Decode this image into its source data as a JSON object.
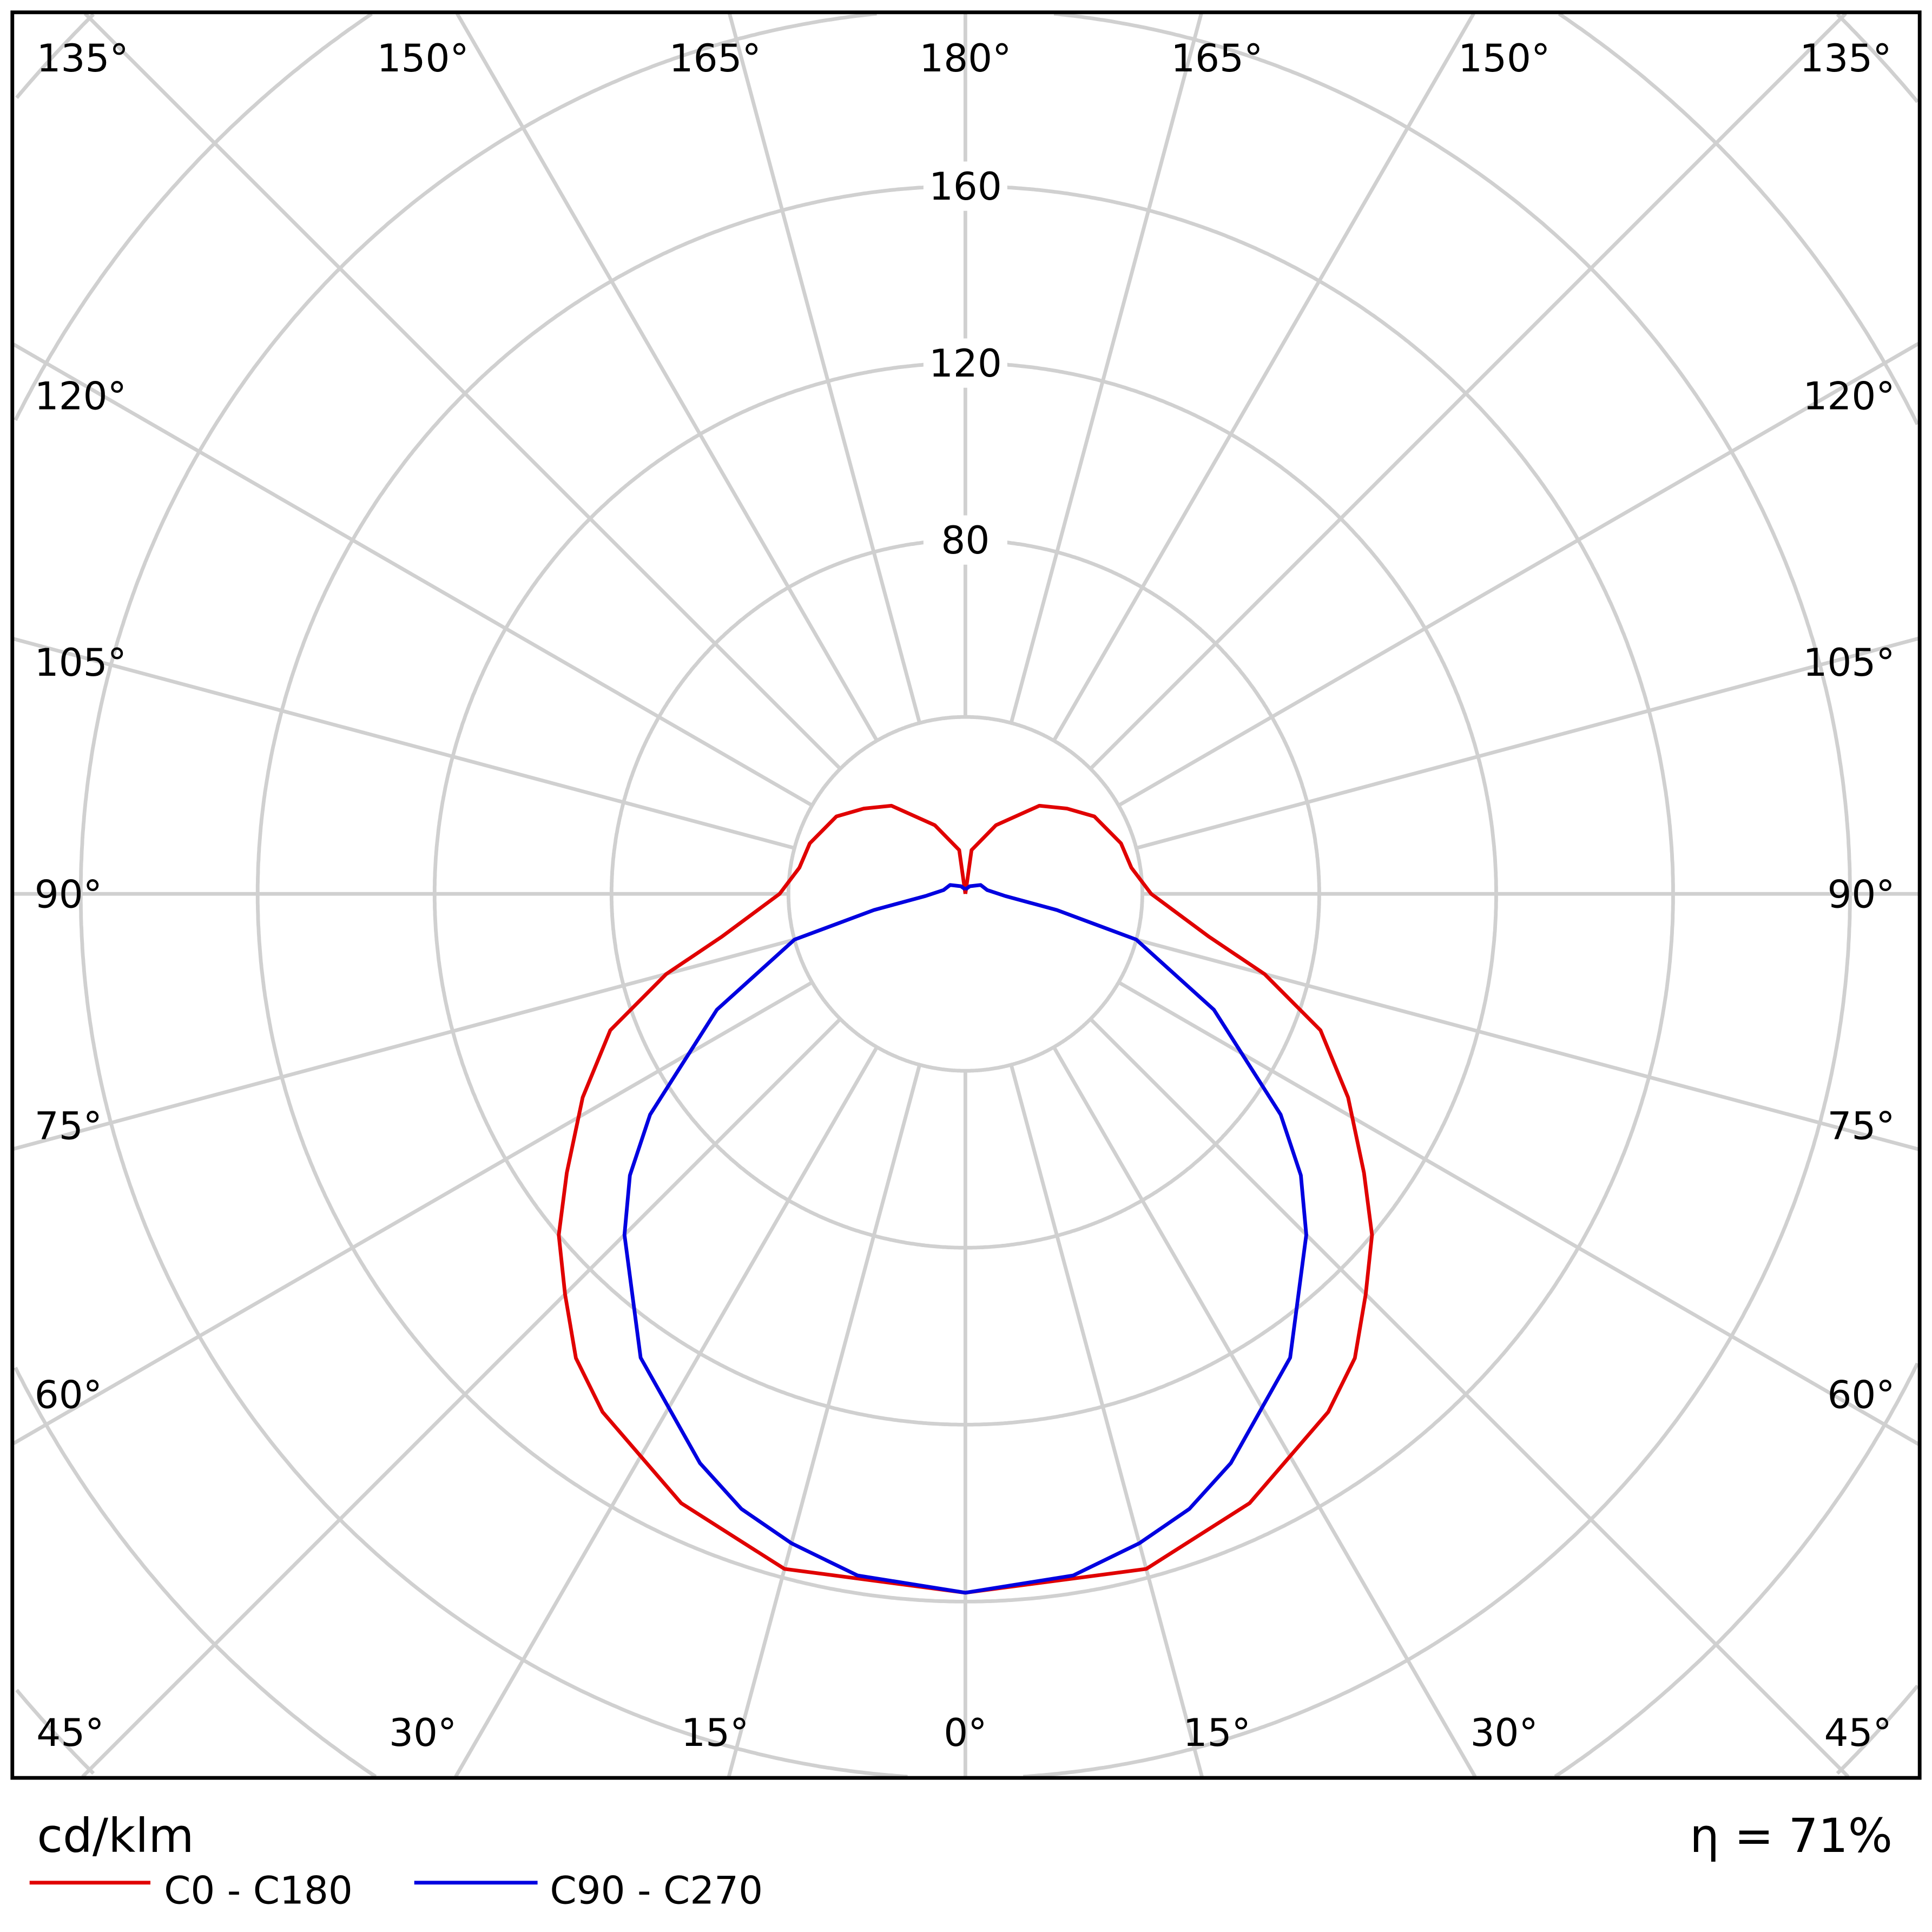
{
  "chart_data": {
    "type": "polar",
    "unit_label": "cd/klm",
    "efficiency_label": "η = 71%",
    "radial_ticks": [
      40,
      80,
      120,
      160,
      200,
      240,
      280,
      320,
      360,
      400
    ],
    "radial_tick_labels": [
      "80",
      "120",
      "160"
    ],
    "radial_labeled_values": [
      80,
      120,
      160
    ],
    "angle_labels": {
      "top": [
        "135°",
        "150°",
        "165°",
        "180°",
        "165°",
        "150°",
        "135°"
      ],
      "left": [
        "120°",
        "105°",
        "90°",
        "75°",
        "60°"
      ],
      "right": [
        "120°",
        "105°",
        "90°",
        "75°",
        "60°"
      ],
      "bottom": [
        "45°",
        "30°",
        "15°",
        "0°",
        "15°",
        "30°",
        "45°"
      ]
    },
    "grid": true,
    "legend_placement": "bottom-left",
    "series": [
      {
        "name": "C0 - C180",
        "color": "#e00000",
        "angles": [
          0,
          15,
          25,
          35,
          40,
          45,
          50,
          55,
          62,
          69,
          75,
          80,
          90,
          99,
          108,
          121,
          130,
          140,
          156,
          172,
          180
        ],
        "values": [
          158,
          158,
          152,
          143,
          137,
          128,
          120,
          110,
          98,
          86,
          70,
          56,
          42,
          38,
          37,
          34,
          30,
          26,
          17,
          10,
          0
        ]
      },
      {
        "name": "C90 - C270",
        "color": "#0000e0",
        "angles": [
          0,
          9,
          15,
          20,
          25,
          35,
          45,
          50,
          55,
          65,
          75,
          80,
          87,
          100,
          120,
          150,
          180
        ],
        "values": [
          158,
          156,
          152,
          148,
          142,
          128,
          109,
          99,
          87,
          62,
          40,
          21,
          9,
          5,
          4,
          2,
          1
        ]
      }
    ]
  }
}
